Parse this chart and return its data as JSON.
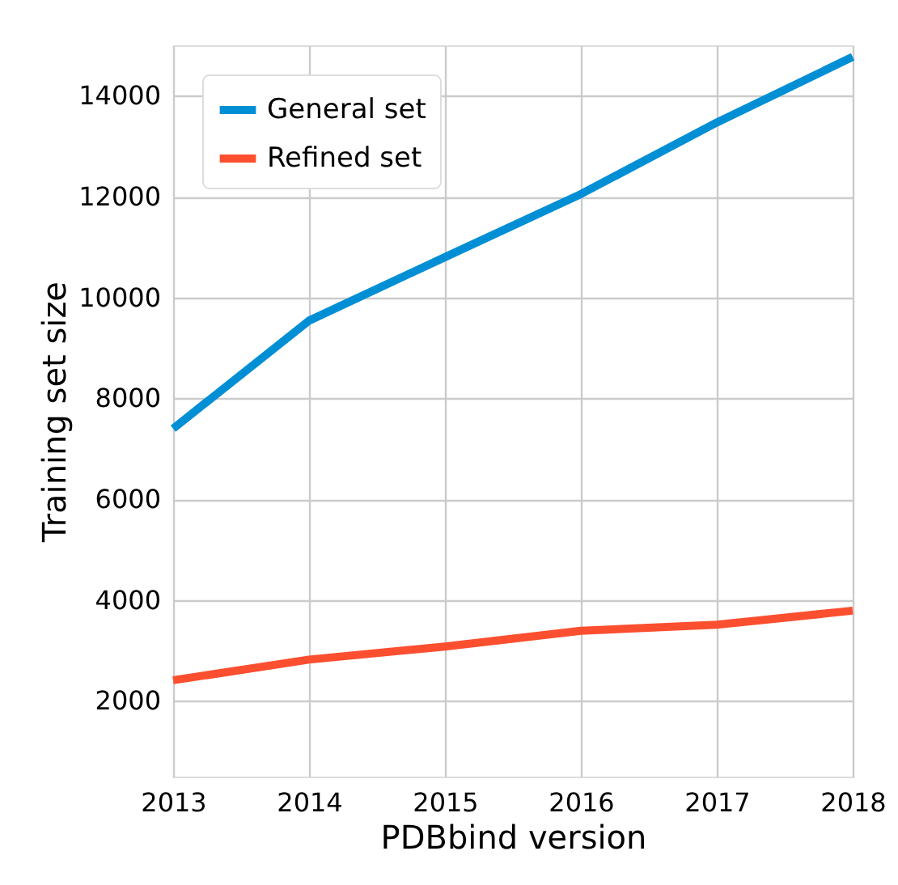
{
  "chart_data": {
    "type": "line",
    "xlabel": "PDBbind version",
    "ylabel": "Training set size",
    "x": [
      2013,
      2014,
      2015,
      2016,
      2017,
      2018
    ],
    "series": [
      {
        "name": "General set",
        "color": "#008fd5",
        "values": [
          7400,
          9540,
          10800,
          12050,
          13470,
          14770
        ]
      },
      {
        "name": "Refined set",
        "color": "#fc4f30",
        "values": [
          2410,
          2820,
          3080,
          3390,
          3510,
          3790
        ]
      }
    ],
    "xlim": [
      2013,
      2018
    ],
    "xticks": [
      2013,
      2014,
      2015,
      2016,
      2017,
      2018
    ],
    "ylim": [
      500,
      15000
    ],
    "yticks": [
      2000,
      4000,
      6000,
      8000,
      10000,
      12000,
      14000
    ],
    "grid": true,
    "legend": "top left",
    "line_style": "solid",
    "marker": "none"
  }
}
